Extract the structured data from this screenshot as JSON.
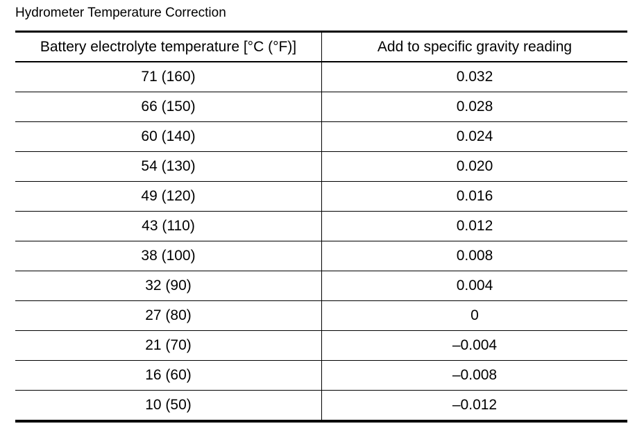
{
  "title": "Hydrometer Temperature Correction",
  "table": {
    "header": [
      "Battery electrolyte temperature [°C (°F)]",
      "Add to specific gravity reading"
    ],
    "rows": [
      [
        "71 (160)",
        "0.032"
      ],
      [
        "66 (150)",
        "0.028"
      ],
      [
        "60 (140)",
        "0.024"
      ],
      [
        "54 (130)",
        "0.020"
      ],
      [
        "49 (120)",
        "0.016"
      ],
      [
        "43 (110)",
        "0.012"
      ],
      [
        "38 (100)",
        "0.008"
      ],
      [
        "32 (90)",
        "0.004"
      ],
      [
        "27 (80)",
        "0"
      ],
      [
        "21 (70)",
        "–0.004"
      ],
      [
        "16 (60)",
        "–0.008"
      ],
      [
        "10 (50)",
        "–0.012"
      ]
    ]
  }
}
